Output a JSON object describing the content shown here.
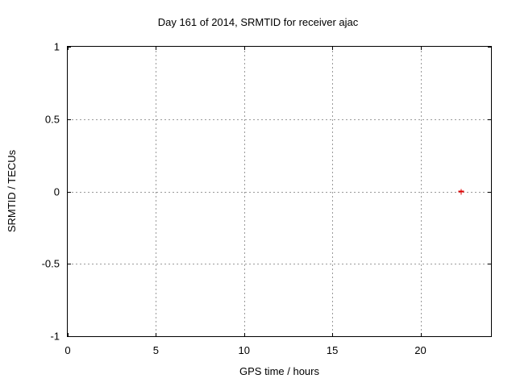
{
  "chart_data": {
    "type": "scatter",
    "title": "Day 161 of 2014, SRMTID for receiver ajac",
    "xlabel": "GPS time / hours",
    "ylabel": "SRMTID / TECUs",
    "xlim": [
      0,
      24
    ],
    "ylim": [
      -1,
      1
    ],
    "xticks": [
      0,
      5,
      10,
      15,
      20
    ],
    "yticks": [
      -1,
      -0.5,
      0,
      0.5,
      1
    ],
    "grid": true,
    "legend_position": "none",
    "series": [
      {
        "name": "SRMTID",
        "marker": "plus",
        "color": "#dd0000",
        "points": [
          {
            "x": 22.3,
            "y": 0.0
          }
        ]
      }
    ]
  },
  "colors": {
    "background": "#ffffff",
    "plot_border": "#000000",
    "grid": "#9a9a9a",
    "text": "#000000",
    "point": "#dd0000"
  }
}
